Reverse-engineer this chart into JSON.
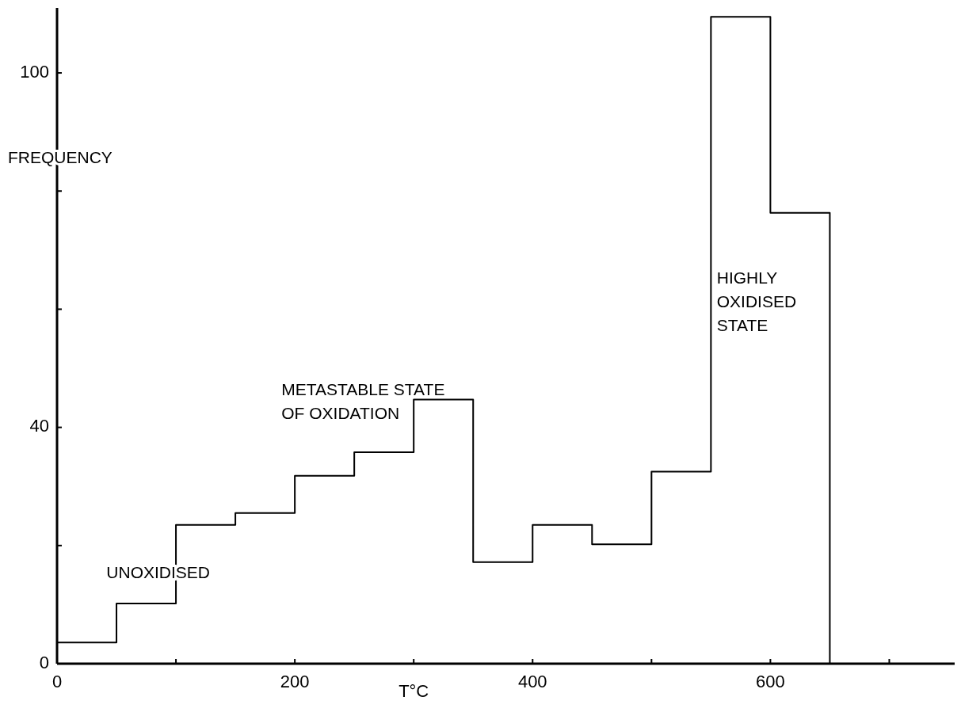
{
  "chart_data": {
    "type": "histogram",
    "xlabel": "T°C",
    "ylabel": "FREQUENCY",
    "bins": [
      0,
      50,
      100,
      150,
      200,
      250,
      300,
      350,
      400,
      450,
      500,
      550,
      600,
      650
    ],
    "values": [
      3.6,
      10.2,
      23.5,
      25.5,
      31.8,
      35.8,
      44.7,
      17.2,
      23.5,
      20.2,
      32.5,
      109.5,
      76.3
    ],
    "color": "#000000",
    "xlim": [
      0,
      755
    ],
    "xticks": [
      0,
      {
        "value": 100,
        "label": null
      },
      200,
      {
        "value": 300,
        "label": null
      },
      400,
      {
        "value": 500,
        "label": null
      },
      600,
      {
        "value": 700,
        "label": null
      }
    ],
    "ylim": [
      0,
      111
    ],
    "yticks": [
      0,
      {
        "value": 20,
        "label": null
      },
      40,
      {
        "value": 60,
        "label": null
      },
      {
        "value": 80,
        "label": null
      },
      100
    ],
    "grid": false,
    "annotations": [
      "UNOXIDISED",
      "METASTABLE STATE\nOF OXIDATION",
      "HIGHLY\nOXIDISED\nSTATE"
    ]
  }
}
